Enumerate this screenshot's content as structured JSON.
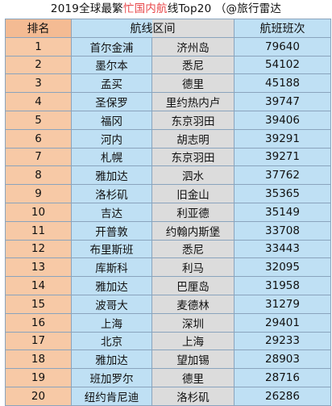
{
  "title": {
    "prefix": "2019全球最繁",
    "highlight": "忙国内航",
    "suffix": "线Top20 （@旅行雷达"
  },
  "headers": {
    "rank": "排名",
    "route": "航线区间",
    "flights": "航班班次"
  },
  "rows": [
    {
      "rank": "1",
      "origin": "首尔金浦",
      "dest": "济州岛",
      "flights": "79640"
    },
    {
      "rank": "2",
      "origin": "墨尔本",
      "dest": "悉尼",
      "flights": "54102"
    },
    {
      "rank": "3",
      "origin": "孟买",
      "dest": "德里",
      "flights": "45188"
    },
    {
      "rank": "4",
      "origin": "圣保罗",
      "dest": "里约热内卢",
      "flights": "39747"
    },
    {
      "rank": "5",
      "origin": "福冈",
      "dest": "东京羽田",
      "flights": "39406"
    },
    {
      "rank": "6",
      "origin": "河内",
      "dest": "胡志明",
      "flights": "39291"
    },
    {
      "rank": "7",
      "origin": "札幌",
      "dest": "东京羽田",
      "flights": "39271"
    },
    {
      "rank": "8",
      "origin": "雅加达",
      "dest": "泗水",
      "flights": "37762"
    },
    {
      "rank": "9",
      "origin": "洛杉矶",
      "dest": "旧金山",
      "flights": "35365"
    },
    {
      "rank": "10",
      "origin": "吉达",
      "dest": "利亚德",
      "flights": "35149"
    },
    {
      "rank": "11",
      "origin": "开普敦",
      "dest": "约翰内斯堡",
      "flights": "33708"
    },
    {
      "rank": "12",
      "origin": "布里斯班",
      "dest": "悉尼",
      "flights": "33443"
    },
    {
      "rank": "13",
      "origin": "库斯科",
      "dest": "利马",
      "flights": "32095"
    },
    {
      "rank": "14",
      "origin": "雅加达",
      "dest": "巴厘岛",
      "flights": "31958"
    },
    {
      "rank": "15",
      "origin": "波哥大",
      "dest": "麦德林",
      "flights": "31279"
    },
    {
      "rank": "16",
      "origin": "上海",
      "dest": "深圳",
      "flights": "29401"
    },
    {
      "rank": "17",
      "origin": "北京",
      "dest": "上海",
      "flights": "29233"
    },
    {
      "rank": "18",
      "origin": "雅加达",
      "dest": "望加锡",
      "flights": "28903"
    },
    {
      "rank": "19",
      "origin": "班加罗尔",
      "dest": "德里",
      "flights": "28716"
    },
    {
      "rank": "20",
      "origin": "纽约肯尼迪",
      "dest": "洛杉矶",
      "flights": "26286"
    }
  ],
  "colors": {
    "rank_column": "#f7c9a6",
    "origin_column": "#bfe0f4",
    "destination_column": "#dcdcdc",
    "flights_column": "#bfe0f4",
    "title_highlight": "#e8474a",
    "grid_lines": "#8aa4bd"
  }
}
